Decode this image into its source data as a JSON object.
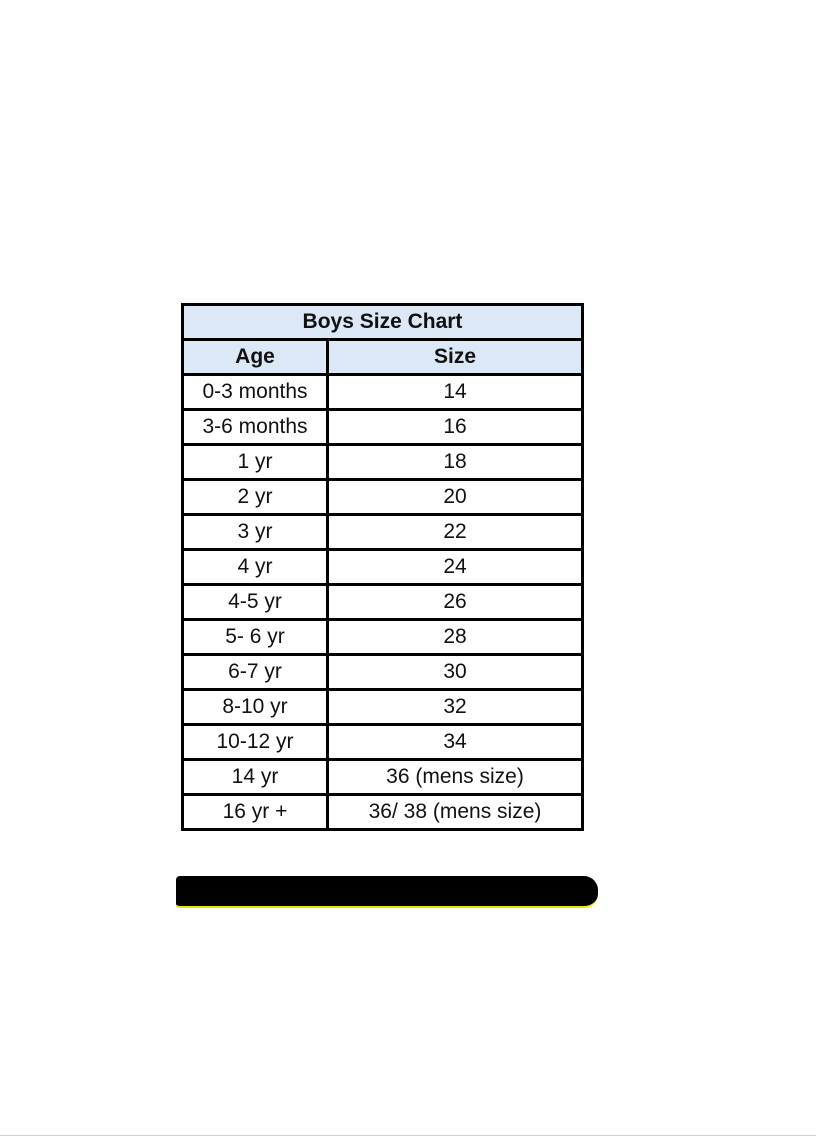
{
  "table": {
    "title": "Boys Size Chart",
    "columns": [
      "Age",
      "Size"
    ],
    "rows": [
      [
        "0-3 months",
        "14"
      ],
      [
        "3-6 months",
        "16"
      ],
      [
        "1 yr",
        "18"
      ],
      [
        "2 yr",
        "20"
      ],
      [
        "3 yr",
        "22"
      ],
      [
        "4 yr",
        "24"
      ],
      [
        "4-5 yr",
        "26"
      ],
      [
        "5- 6 yr",
        "28"
      ],
      [
        "6-7 yr",
        "30"
      ],
      [
        "8-10 yr",
        "32"
      ],
      [
        "10-12 yr",
        "34"
      ],
      [
        "14 yr",
        "36 (mens size)"
      ],
      [
        "16 yr +",
        "36/ 38 (mens size)"
      ]
    ],
    "header_bg": "#dde8f6"
  }
}
